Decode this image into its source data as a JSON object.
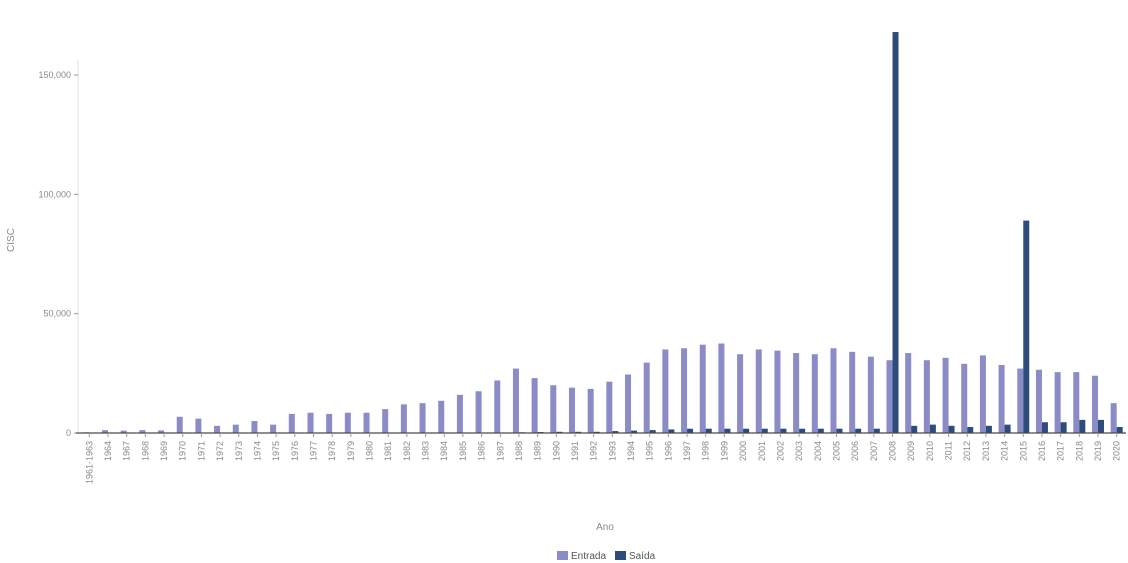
{
  "chart_data": {
    "type": "bar",
    "xlabel": "Ano",
    "ylabel": "CISC",
    "ylim": [
      0,
      170000
    ],
    "yticks": [
      0,
      50000,
      100000,
      150000
    ],
    "ytick_labels": [
      "0",
      "50,000",
      "100,000",
      "150,000"
    ],
    "grid": false,
    "legend_position": "bottom-center",
    "categories": [
      "1961-1963",
      "1964",
      "1967",
      "1968",
      "1969",
      "1970",
      "1971",
      "1972",
      "1973",
      "1974",
      "1975",
      "1976",
      "1977",
      "1978",
      "1979",
      "1980",
      "1981",
      "1982",
      "1983",
      "1984",
      "1985",
      "1986",
      "1987",
      "1988",
      "1989",
      "1990",
      "1991",
      "1992",
      "1993",
      "1994",
      "1995",
      "1996",
      "1997",
      "1998",
      "1999",
      "2000",
      "2001",
      "2002",
      "2003",
      "2004",
      "2005",
      "2006",
      "2007",
      "2008",
      "2009",
      "2010",
      "2011",
      "2012",
      "2013",
      "2014",
      "2015",
      "2016",
      "2017",
      "2018",
      "2019",
      "2020"
    ],
    "series": [
      {
        "name": "Entrada",
        "color": "#8b8bc8",
        "values": [
          300,
          1200,
          1000,
          1200,
          1100,
          6800,
          6000,
          3000,
          3500,
          5000,
          3500,
          8000,
          8500,
          8000,
          8500,
          8500,
          10000,
          12000,
          12500,
          13500,
          16000,
          17500,
          22000,
          27000,
          23000,
          20000,
          19000,
          18500,
          21500,
          24500,
          29500,
          35000,
          35500,
          37000,
          37500,
          33000,
          35000,
          34500,
          33500,
          33000,
          35500,
          34000,
          32000,
          30500,
          33500,
          30500,
          31500,
          29000,
          32500,
          28500,
          27000,
          26500,
          25500,
          25500,
          24000,
          12500
        ]
      },
      {
        "name": "Saída",
        "color": "#2e4b7c",
        "values": [
          0,
          0,
          0,
          0,
          0,
          0,
          0,
          0,
          0,
          0,
          0,
          0,
          0,
          0,
          0,
          0,
          0,
          0,
          0,
          0,
          0,
          0,
          200,
          300,
          400,
          500,
          500,
          500,
          800,
          1000,
          1200,
          1500,
          1800,
          1800,
          1800,
          1800,
          1800,
          1800,
          1800,
          1800,
          1800,
          1800,
          1800,
          168000,
          3000,
          3500,
          3000,
          2500,
          3000,
          3500,
          89000,
          4500,
          4500,
          5500,
          5500,
          2500
        ]
      }
    ]
  }
}
